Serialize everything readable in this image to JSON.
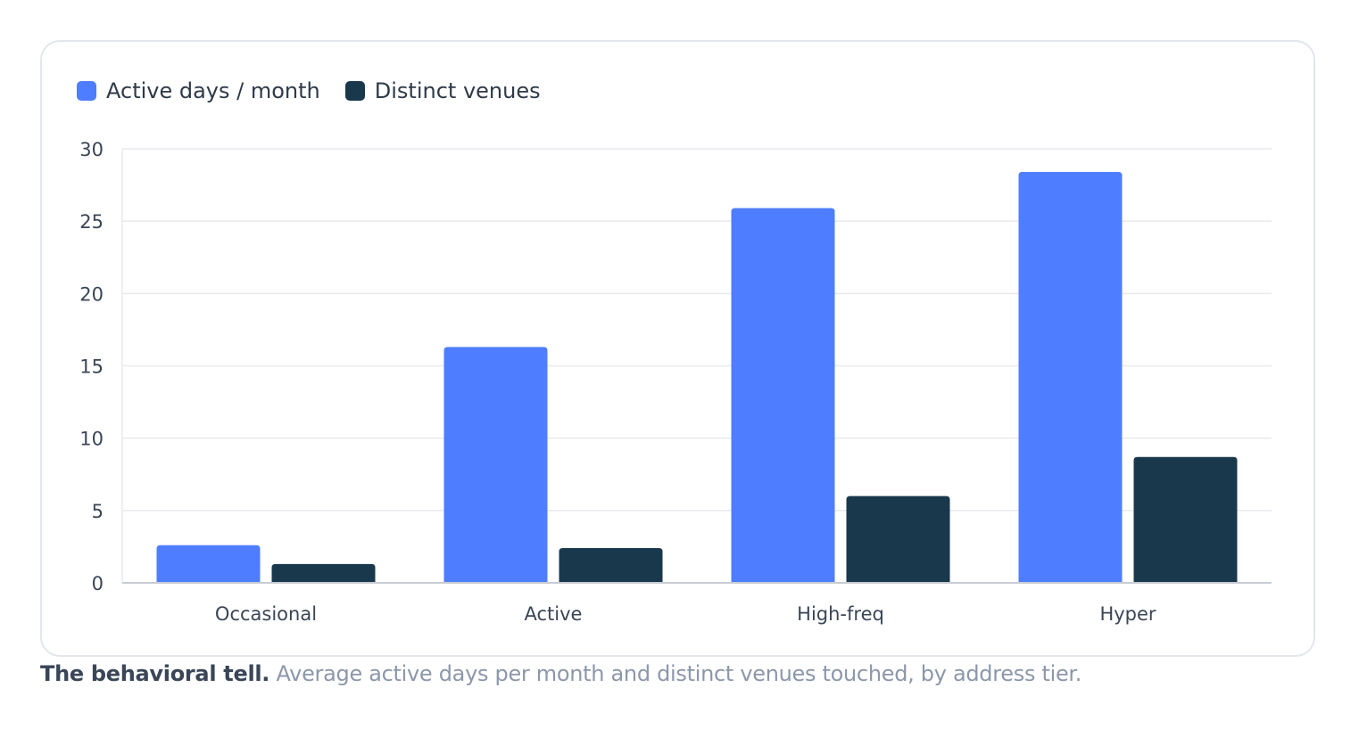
{
  "colors": {
    "active_days": "#4f7dff",
    "distinct_venues": "#1a384c",
    "grid": "#e8eaee",
    "axis": "#c8ccd2"
  },
  "legend": [
    {
      "label": "Active days / month",
      "color": "#4f7dff"
    },
    {
      "label": "Distinct venues",
      "color": "#1a384c"
    }
  ],
  "chart_data": {
    "type": "bar",
    "categories": [
      "Occasional",
      "Active",
      "High-freq",
      "Hyper"
    ],
    "series": [
      {
        "name": "Active days / month",
        "color": "#4f7dff",
        "values": [
          2.6,
          16.3,
          25.9,
          28.4
        ]
      },
      {
        "name": "Distinct venues",
        "color": "#1a384c",
        "values": [
          1.3,
          2.4,
          6.0,
          8.7
        ]
      }
    ],
    "ylim": [
      0,
      30
    ],
    "yticks": [
      0,
      5,
      10,
      15,
      20,
      25,
      30
    ],
    "grid": true,
    "legend_position": "top-left"
  },
  "caption": {
    "bold": "The behavioral tell.",
    "text": "Average active days per month and distinct venues touched, by address tier."
  }
}
